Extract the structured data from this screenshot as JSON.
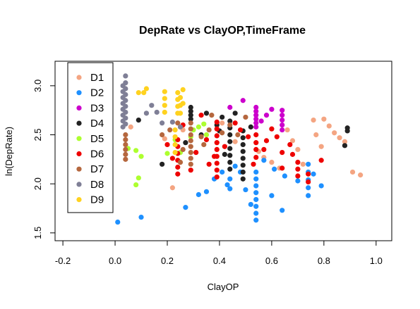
{
  "chart_data": {
    "type": "scatter",
    "title": "DepRate vs ClayOP,TimeFrame",
    "xlabel": "ClayOP",
    "ylabel": "ln(DepRate)",
    "xlim": [
      -0.23,
      1.06
    ],
    "ylim": [
      1.42,
      3.25
    ],
    "xticks": [
      -0.2,
      0.0,
      0.2,
      0.4,
      0.6,
      0.8,
      1.0
    ],
    "xtick_labels": [
      "-0.2",
      "0.0",
      "0.2",
      "0.4",
      "0.6",
      "0.8",
      "1.0"
    ],
    "yticks": [
      1.5,
      2.0,
      2.5,
      3.0
    ],
    "ytick_labels": [
      "1.5",
      "2.0",
      "2.5",
      "3.0"
    ],
    "grid": false,
    "legend_position": "top-left",
    "series": [
      {
        "name": "D1",
        "color": "#f4a582",
        "points": [
          [
            0.06,
            2.58
          ],
          [
            0.19,
            2.46
          ],
          [
            0.22,
            1.96
          ],
          [
            0.26,
            2.55
          ],
          [
            0.41,
            2.62
          ],
          [
            0.46,
            2.43
          ],
          [
            0.55,
            2.33
          ],
          [
            0.57,
            2.27
          ],
          [
            0.6,
            2.22
          ],
          [
            0.63,
            2.16
          ],
          [
            0.66,
            2.55
          ],
          [
            0.68,
            2.44
          ],
          [
            0.7,
            2.35
          ],
          [
            0.72,
            2.2
          ],
          [
            0.76,
            2.65
          ],
          [
            0.77,
            2.5
          ],
          [
            0.79,
            2.38
          ],
          [
            0.8,
            2.66
          ],
          [
            0.82,
            2.59
          ],
          [
            0.84,
            2.52
          ],
          [
            0.86,
            2.47
          ],
          [
            0.88,
            2.43
          ],
          [
            0.91,
            2.12
          ],
          [
            0.94,
            2.09
          ]
        ]
      },
      {
        "name": "D2",
        "color": "#1e90ff",
        "points": [
          [
            0.01,
            1.61
          ],
          [
            0.1,
            1.66
          ],
          [
            0.27,
            1.76
          ],
          [
            0.32,
            1.89
          ],
          [
            0.35,
            1.92
          ],
          [
            0.38,
            2.05
          ],
          [
            0.41,
            2.12
          ],
          [
            0.43,
            1.99
          ],
          [
            0.44,
            1.95
          ],
          [
            0.44,
            2.05
          ],
          [
            0.46,
            2.18
          ],
          [
            0.48,
            2.12
          ],
          [
            0.5,
            1.94
          ],
          [
            0.52,
            1.79
          ],
          [
            0.54,
            1.63
          ],
          [
            0.54,
            1.7
          ],
          [
            0.54,
            1.77
          ],
          [
            0.54,
            1.84
          ],
          [
            0.54,
            1.91
          ],
          [
            0.54,
            1.98
          ],
          [
            0.54,
            2.05
          ],
          [
            0.54,
            2.12
          ],
          [
            0.57,
            2.24
          ],
          [
            0.6,
            1.88
          ],
          [
            0.61,
            2.15
          ],
          [
            0.64,
            1.73
          ],
          [
            0.65,
            2.08
          ],
          [
            0.7,
            2.03
          ],
          [
            0.74,
            1.88
          ],
          [
            0.74,
            1.96
          ],
          [
            0.74,
            2.04
          ],
          [
            0.74,
            2.12
          ],
          [
            0.74,
            2.2
          ],
          [
            0.76,
            2.1
          ],
          [
            0.79,
            1.98
          ]
        ]
      },
      {
        "name": "D3",
        "color": "#cc00cc",
        "points": [
          [
            0.44,
            2.78
          ],
          [
            0.49,
            2.85
          ],
          [
            0.54,
            2.58
          ],
          [
            0.54,
            2.62
          ],
          [
            0.54,
            2.66
          ],
          [
            0.54,
            2.7
          ],
          [
            0.54,
            2.74
          ],
          [
            0.54,
            2.78
          ],
          [
            0.56,
            2.64
          ],
          [
            0.58,
            2.7
          ],
          [
            0.6,
            2.76
          ],
          [
            0.64,
            2.55
          ],
          [
            0.64,
            2.6
          ],
          [
            0.64,
            2.65
          ],
          [
            0.64,
            2.7
          ],
          [
            0.64,
            2.75
          ]
        ]
      },
      {
        "name": "D4",
        "color": "#222222",
        "points": [
          [
            0.09,
            2.65
          ],
          [
            0.18,
            2.2
          ],
          [
            0.27,
            2.42
          ],
          [
            0.29,
            2.66
          ],
          [
            0.29,
            2.7
          ],
          [
            0.29,
            2.74
          ],
          [
            0.29,
            2.78
          ],
          [
            0.33,
            2.5
          ],
          [
            0.35,
            2.72
          ],
          [
            0.39,
            2.6
          ],
          [
            0.4,
            2.54
          ],
          [
            0.41,
            2.68
          ],
          [
            0.42,
            2.3
          ],
          [
            0.44,
            2.15
          ],
          [
            0.44,
            2.22
          ],
          [
            0.44,
            2.29
          ],
          [
            0.44,
            2.36
          ],
          [
            0.44,
            2.43
          ],
          [
            0.44,
            2.5
          ],
          [
            0.44,
            2.57
          ],
          [
            0.44,
            2.64
          ],
          [
            0.46,
            2.72
          ],
          [
            0.49,
            2.05
          ],
          [
            0.49,
            2.12
          ],
          [
            0.49,
            2.19
          ],
          [
            0.49,
            2.26
          ],
          [
            0.49,
            2.33
          ],
          [
            0.49,
            2.4
          ],
          [
            0.49,
            2.47
          ],
          [
            0.49,
            2.54
          ],
          [
            0.52,
            2.58
          ],
          [
            0.88,
            2.39
          ],
          [
            0.89,
            2.54
          ],
          [
            0.89,
            2.57
          ]
        ]
      },
      {
        "name": "D5",
        "color": "#adff2f",
        "points": [
          [
            0.05,
            2.36
          ],
          [
            0.08,
            2.34
          ],
          [
            0.08,
            1.99
          ],
          [
            0.09,
            2.06
          ],
          [
            0.1,
            2.28
          ],
          [
            0.2,
            2.31
          ],
          [
            0.23,
            2.45
          ],
          [
            0.25,
            2.32
          ],
          [
            0.29,
            2.48
          ],
          [
            0.3,
            2.55
          ],
          [
            0.32,
            2.58
          ],
          [
            0.34,
            2.61
          ],
          [
            0.35,
            2.5
          ]
        ]
      },
      {
        "name": "D6",
        "color": "#ee0000",
        "points": [
          [
            0.2,
            2.4
          ],
          [
            0.22,
            2.26
          ],
          [
            0.24,
            2.1
          ],
          [
            0.24,
            2.17
          ],
          [
            0.24,
            2.24
          ],
          [
            0.24,
            2.31
          ],
          [
            0.24,
            2.38
          ],
          [
            0.24,
            2.45
          ],
          [
            0.26,
            2.6
          ],
          [
            0.29,
            2.14
          ],
          [
            0.31,
            2.32
          ],
          [
            0.33,
            2.7
          ],
          [
            0.35,
            2.45
          ],
          [
            0.36,
            2.2
          ],
          [
            0.38,
            2.28
          ],
          [
            0.39,
            2.07
          ],
          [
            0.39,
            2.14
          ],
          [
            0.39,
            2.21
          ],
          [
            0.39,
            2.28
          ],
          [
            0.39,
            2.35
          ],
          [
            0.39,
            2.42
          ],
          [
            0.39,
            2.49
          ],
          [
            0.39,
            2.56
          ],
          [
            0.39,
            2.63
          ],
          [
            0.42,
            2.38
          ],
          [
            0.46,
            2.62
          ],
          [
            0.48,
            2.55
          ],
          [
            0.51,
            2.48
          ],
          [
            0.53,
            2.2
          ],
          [
            0.54,
            2.27
          ],
          [
            0.54,
            2.35
          ],
          [
            0.54,
            2.42
          ],
          [
            0.54,
            2.5
          ],
          [
            0.57,
            2.35
          ],
          [
            0.58,
            2.44
          ],
          [
            0.6,
            2.56
          ],
          [
            0.62,
            2.48
          ],
          [
            0.64,
            2.32
          ],
          [
            0.64,
            2.16
          ],
          [
            0.67,
            2.4
          ],
          [
            0.68,
            2.3
          ],
          [
            0.7,
            2.08
          ],
          [
            0.7,
            2.15
          ],
          [
            0.7,
            2.22
          ],
          [
            0.74,
            2.02
          ],
          [
            0.74,
            2.1
          ],
          [
            0.79,
            2.24
          ]
        ]
      },
      {
        "name": "D7",
        "color": "#b5673e",
        "points": [
          [
            0.04,
            2.25
          ],
          [
            0.04,
            2.3
          ],
          [
            0.04,
            2.35
          ],
          [
            0.04,
            2.4
          ],
          [
            0.04,
            2.45
          ],
          [
            0.04,
            2.5
          ],
          [
            0.18,
            2.5
          ],
          [
            0.21,
            2.55
          ],
          [
            0.24,
            2.62
          ],
          [
            0.25,
            2.22
          ],
          [
            0.26,
            2.35
          ],
          [
            0.29,
            2.2
          ],
          [
            0.29,
            2.26
          ],
          [
            0.29,
            2.32
          ],
          [
            0.29,
            2.38
          ],
          [
            0.29,
            2.44
          ],
          [
            0.29,
            2.5
          ],
          [
            0.29,
            2.56
          ],
          [
            0.29,
            2.62
          ],
          [
            0.33,
            2.48
          ],
          [
            0.34,
            2.4
          ],
          [
            0.36,
            2.55
          ],
          [
            0.37,
            2.7
          ],
          [
            0.41,
            2.52
          ],
          [
            0.44,
            2.6
          ],
          [
            0.47,
            2.5
          ],
          [
            0.5,
            2.68
          ]
        ]
      },
      {
        "name": "D8",
        "color": "#7f7f96",
        "points": [
          [
            0.03,
            2.58
          ],
          [
            0.03,
            2.64
          ],
          [
            0.03,
            2.7
          ],
          [
            0.03,
            2.76
          ],
          [
            0.03,
            2.82
          ],
          [
            0.03,
            2.88
          ],
          [
            0.03,
            2.94
          ],
          [
            0.03,
            3.0
          ],
          [
            0.04,
            2.61
          ],
          [
            0.04,
            2.67
          ],
          [
            0.04,
            2.73
          ],
          [
            0.04,
            2.79
          ],
          [
            0.04,
            2.85
          ],
          [
            0.04,
            2.91
          ],
          [
            0.04,
            2.97
          ],
          [
            0.04,
            3.03
          ],
          [
            0.04,
            3.1
          ],
          [
            0.12,
            2.72
          ],
          [
            0.14,
            2.8
          ],
          [
            0.16,
            2.73
          ],
          [
            0.18,
            2.62
          ],
          [
            0.22,
            2.63
          ],
          [
            0.25,
            2.58
          ]
        ]
      },
      {
        "name": "D9",
        "color": "#ffd21f",
        "points": [
          [
            0.09,
            2.93
          ],
          [
            0.11,
            2.93
          ],
          [
            0.12,
            2.97
          ],
          [
            0.19,
            2.73
          ],
          [
            0.19,
            2.8
          ],
          [
            0.19,
            2.87
          ],
          [
            0.19,
            2.94
          ],
          [
            0.23,
            2.32
          ],
          [
            0.23,
            2.4
          ],
          [
            0.23,
            2.48
          ],
          [
            0.23,
            2.55
          ],
          [
            0.24,
            2.72
          ],
          [
            0.24,
            2.79
          ],
          [
            0.24,
            2.86
          ],
          [
            0.24,
            2.93
          ],
          [
            0.25,
            2.72
          ],
          [
            0.25,
            2.8
          ],
          [
            0.25,
            2.88
          ],
          [
            0.26,
            2.96
          ],
          [
            0.26,
            2.82
          ]
        ]
      }
    ]
  }
}
